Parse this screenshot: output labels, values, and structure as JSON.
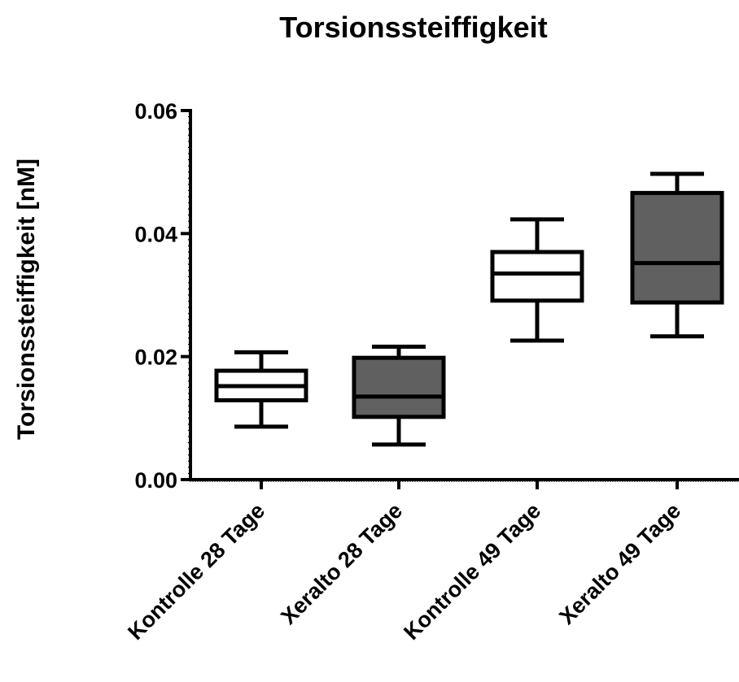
{
  "chart_data": {
    "type": "box",
    "title": "Torsionssteiffigkeit",
    "xlabel": "",
    "ylabel": "Torsionssteiffigkeit [nM]",
    "ylim": [
      0,
      0.06
    ],
    "yticks": [
      0.0,
      0.02,
      0.04,
      0.06
    ],
    "ytick_labels": [
      "0.00",
      "0.02",
      "0.04",
      "0.06"
    ],
    "grid": false,
    "legend": "none",
    "categories": [
      "Kontrolle 28 Tage",
      "Xeralto 28 Tage",
      "Kontrolle 49 Tage",
      "Xeralto 49 Tage"
    ],
    "boxes": [
      {
        "category": "Kontrolle 28 Tage",
        "min": 0.0086,
        "q1": 0.0129,
        "median": 0.0152,
        "q3": 0.0177,
        "max": 0.0207,
        "fill": "#ffffff"
      },
      {
        "category": "Xeralto 28 Tage",
        "min": 0.0057,
        "q1": 0.0102,
        "median": 0.0135,
        "q3": 0.0198,
        "max": 0.0216,
        "fill": "#606060"
      },
      {
        "category": "Kontrolle 49 Tage",
        "min": 0.0226,
        "q1": 0.0291,
        "median": 0.0335,
        "q3": 0.037,
        "max": 0.0423,
        "fill": "#ffffff"
      },
      {
        "category": "Xeralto 49 Tage",
        "min": 0.0233,
        "q1": 0.0288,
        "median": 0.0352,
        "q3": 0.0466,
        "max": 0.0497,
        "fill": "#606060"
      }
    ]
  }
}
